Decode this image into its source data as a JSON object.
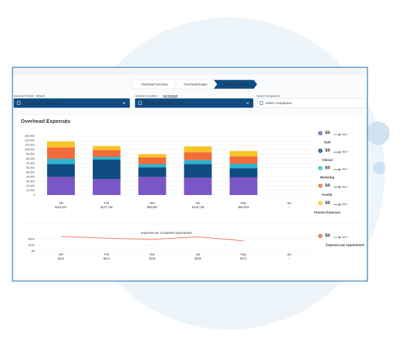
{
  "tabs": [
    "Overhead Summary",
    "Overhead Budget",
    "Overhead Reports"
  ],
  "active_tab": 2,
  "filters": [
    {
      "label": "Selected Period · Default",
      "value": "January 2022 - June 2022"
    },
    {
      "label": "Selected Location · ",
      "link": "Set Default",
      "value": "Fairway Orthodontics - demo"
    },
    {
      "label": "Select Comparison",
      "value": "Select Comparison"
    }
  ],
  "card_title": "Overhead Expenses",
  "chart_data": [
    {
      "type": "bar",
      "stacked": true,
      "grid": true,
      "categories": [
        "Jan",
        "Feb",
        "Mar",
        "Apr",
        "May",
        "Jun"
      ],
      "category_sublabels": [
        "$118,627",
        "$107,738",
        "$89,697",
        "$106,738",
        "$96,939",
        "--"
      ],
      "series": [
        {
          "name": "Staff",
          "color": "#7b56c6",
          "values": [
            40000,
            35000,
            40000,
            38000,
            39000,
            null
          ]
        },
        {
          "name": "Clinical",
          "color": "#0f4c81",
          "values": [
            28000,
            43000,
            21000,
            30000,
            20000,
            null
          ]
        },
        {
          "name": "Marketing",
          "color": "#2eb4d0",
          "values": [
            12000,
            6000,
            7000,
            9000,
            10000,
            null
          ]
        },
        {
          "name": "Facility",
          "color": "#f26b3a",
          "values": [
            25000,
            15000,
            15000,
            17000,
            16000,
            null
          ]
        },
        {
          "name": "Practice Expenses",
          "color": "#f7c325",
          "values": [
            13000,
            9000,
            7000,
            13000,
            12000,
            null
          ]
        }
      ],
      "ylim": [
        0,
        130000
      ],
      "yticks": [
        0,
        {
          "value": 10000,
          "label": "10,000"
        },
        {
          "value": 20000,
          "label": "20,000"
        },
        {
          "value": 30000,
          "label": "30,000"
        },
        {
          "value": 40000,
          "label": "40,000"
        },
        {
          "value": 50000,
          "label": "50,000"
        },
        {
          "value": 60000,
          "label": "60,000"
        },
        {
          "value": 70000,
          "label": "70,000"
        },
        {
          "value": 80000,
          "label": "80,000"
        },
        {
          "value": 90000,
          "label": "90,000"
        },
        {
          "value": 100000,
          "label": "100,000"
        },
        {
          "value": 110000,
          "label": "110,000"
        },
        {
          "value": 120000,
          "label": "120,000"
        },
        {
          "value": 130000,
          "label": "130,000"
        }
      ]
    },
    {
      "type": "line",
      "grid": true,
      "title": "Expenses per Completed Appointment",
      "categories": [
        "Jan",
        "Feb",
        "Mar",
        "Apr",
        "May",
        "Jun"
      ],
      "series": [
        {
          "name": "Expenses per Appointment",
          "color": "#e8643c",
          "values": [
            242,
            214,
            194,
            236,
            171,
            null
          ],
          "value_labels": [
            "$242",
            "$214",
            "$194",
            "$236",
            "$171",
            "--"
          ]
        }
      ],
      "ylim": [
        0,
        250
      ],
      "yticks": [
        {
          "value": 0,
          "label": "$0"
        },
        {
          "value": 100,
          "label": "$100"
        },
        {
          "value": 200,
          "label": "$200"
        }
      ]
    }
  ],
  "side_panel": [
    {
      "amount": "$0",
      "compare": "SMLY"
    },
    {
      "amount": "$0",
      "compare": "SMLY"
    },
    {
      "amount": "$0",
      "compare": "SMLY"
    },
    {
      "amount": "$0",
      "compare": "SMLY"
    },
    {
      "amount": "$0",
      "compare": "SMLY"
    },
    {
      "amount": "$0",
      "compare": "SMLY"
    }
  ]
}
